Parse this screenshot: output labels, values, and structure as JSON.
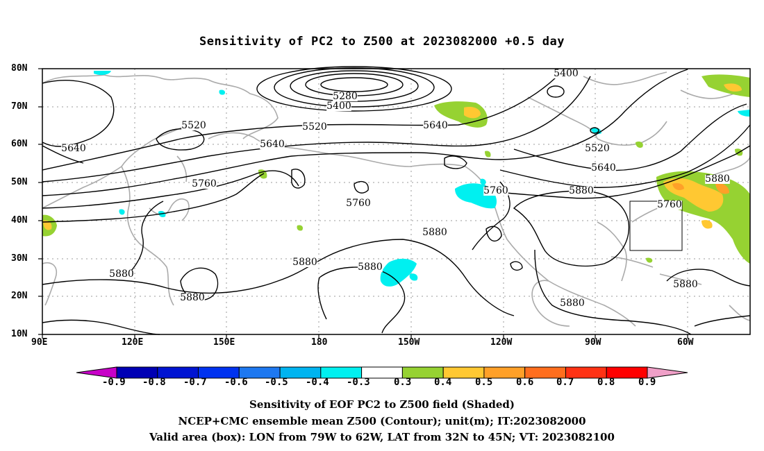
{
  "title": "Sensitivity of PC2 to Z500 at 2023082000 +0.5 day",
  "map": {
    "lat_labels": [
      "80N",
      "70N",
      "60N",
      "50N",
      "40N",
      "30N",
      "20N",
      "10N"
    ],
    "lon_labels": [
      "90E",
      "120E",
      "150E",
      "180",
      "150W",
      "120W",
      "90W",
      "60W"
    ],
    "contour_labels": [
      "5280",
      "5400",
      "5400",
      "5520",
      "5520",
      "5520",
      "5640",
      "5640",
      "5640",
      "5640",
      "5760",
      "5760",
      "5760",
      "5760",
      "5880",
      "5880",
      "5880",
      "5880",
      "5880",
      "5880",
      "5880",
      "5880",
      "5880"
    ],
    "valid_box": {
      "lon_from": "79W",
      "lon_to": "62W",
      "lat_from": "32N",
      "lat_to": "45N"
    }
  },
  "colorbar": {
    "labels": [
      "-0.9",
      "-0.8",
      "-0.7",
      "-0.6",
      "-0.5",
      "-0.4",
      "-0.3",
      "0.3",
      "0.4",
      "0.5",
      "0.6",
      "0.7",
      "0.8",
      "0.9"
    ],
    "colors": [
      "#c800c8",
      "#0000b4",
      "#0014d2",
      "#0032f0",
      "#1e78f0",
      "#00b4f0",
      "#00f0f0",
      "#ffffff",
      "#96d232",
      "#ffc832",
      "#ffa028",
      "#ff6e1e",
      "#ff3214",
      "#ff0000",
      "#f0a0c8"
    ]
  },
  "captions": [
    "Sensitivity of EOF PC2 to Z500 field (Shaded)",
    "NCEP+CMC ensemble mean Z500 (Contour); unit(m); IT:2023082000",
    "Valid area (box): LON from 79W to 62W, LAT from 32N to 45N; VT: 2023082100"
  ]
}
